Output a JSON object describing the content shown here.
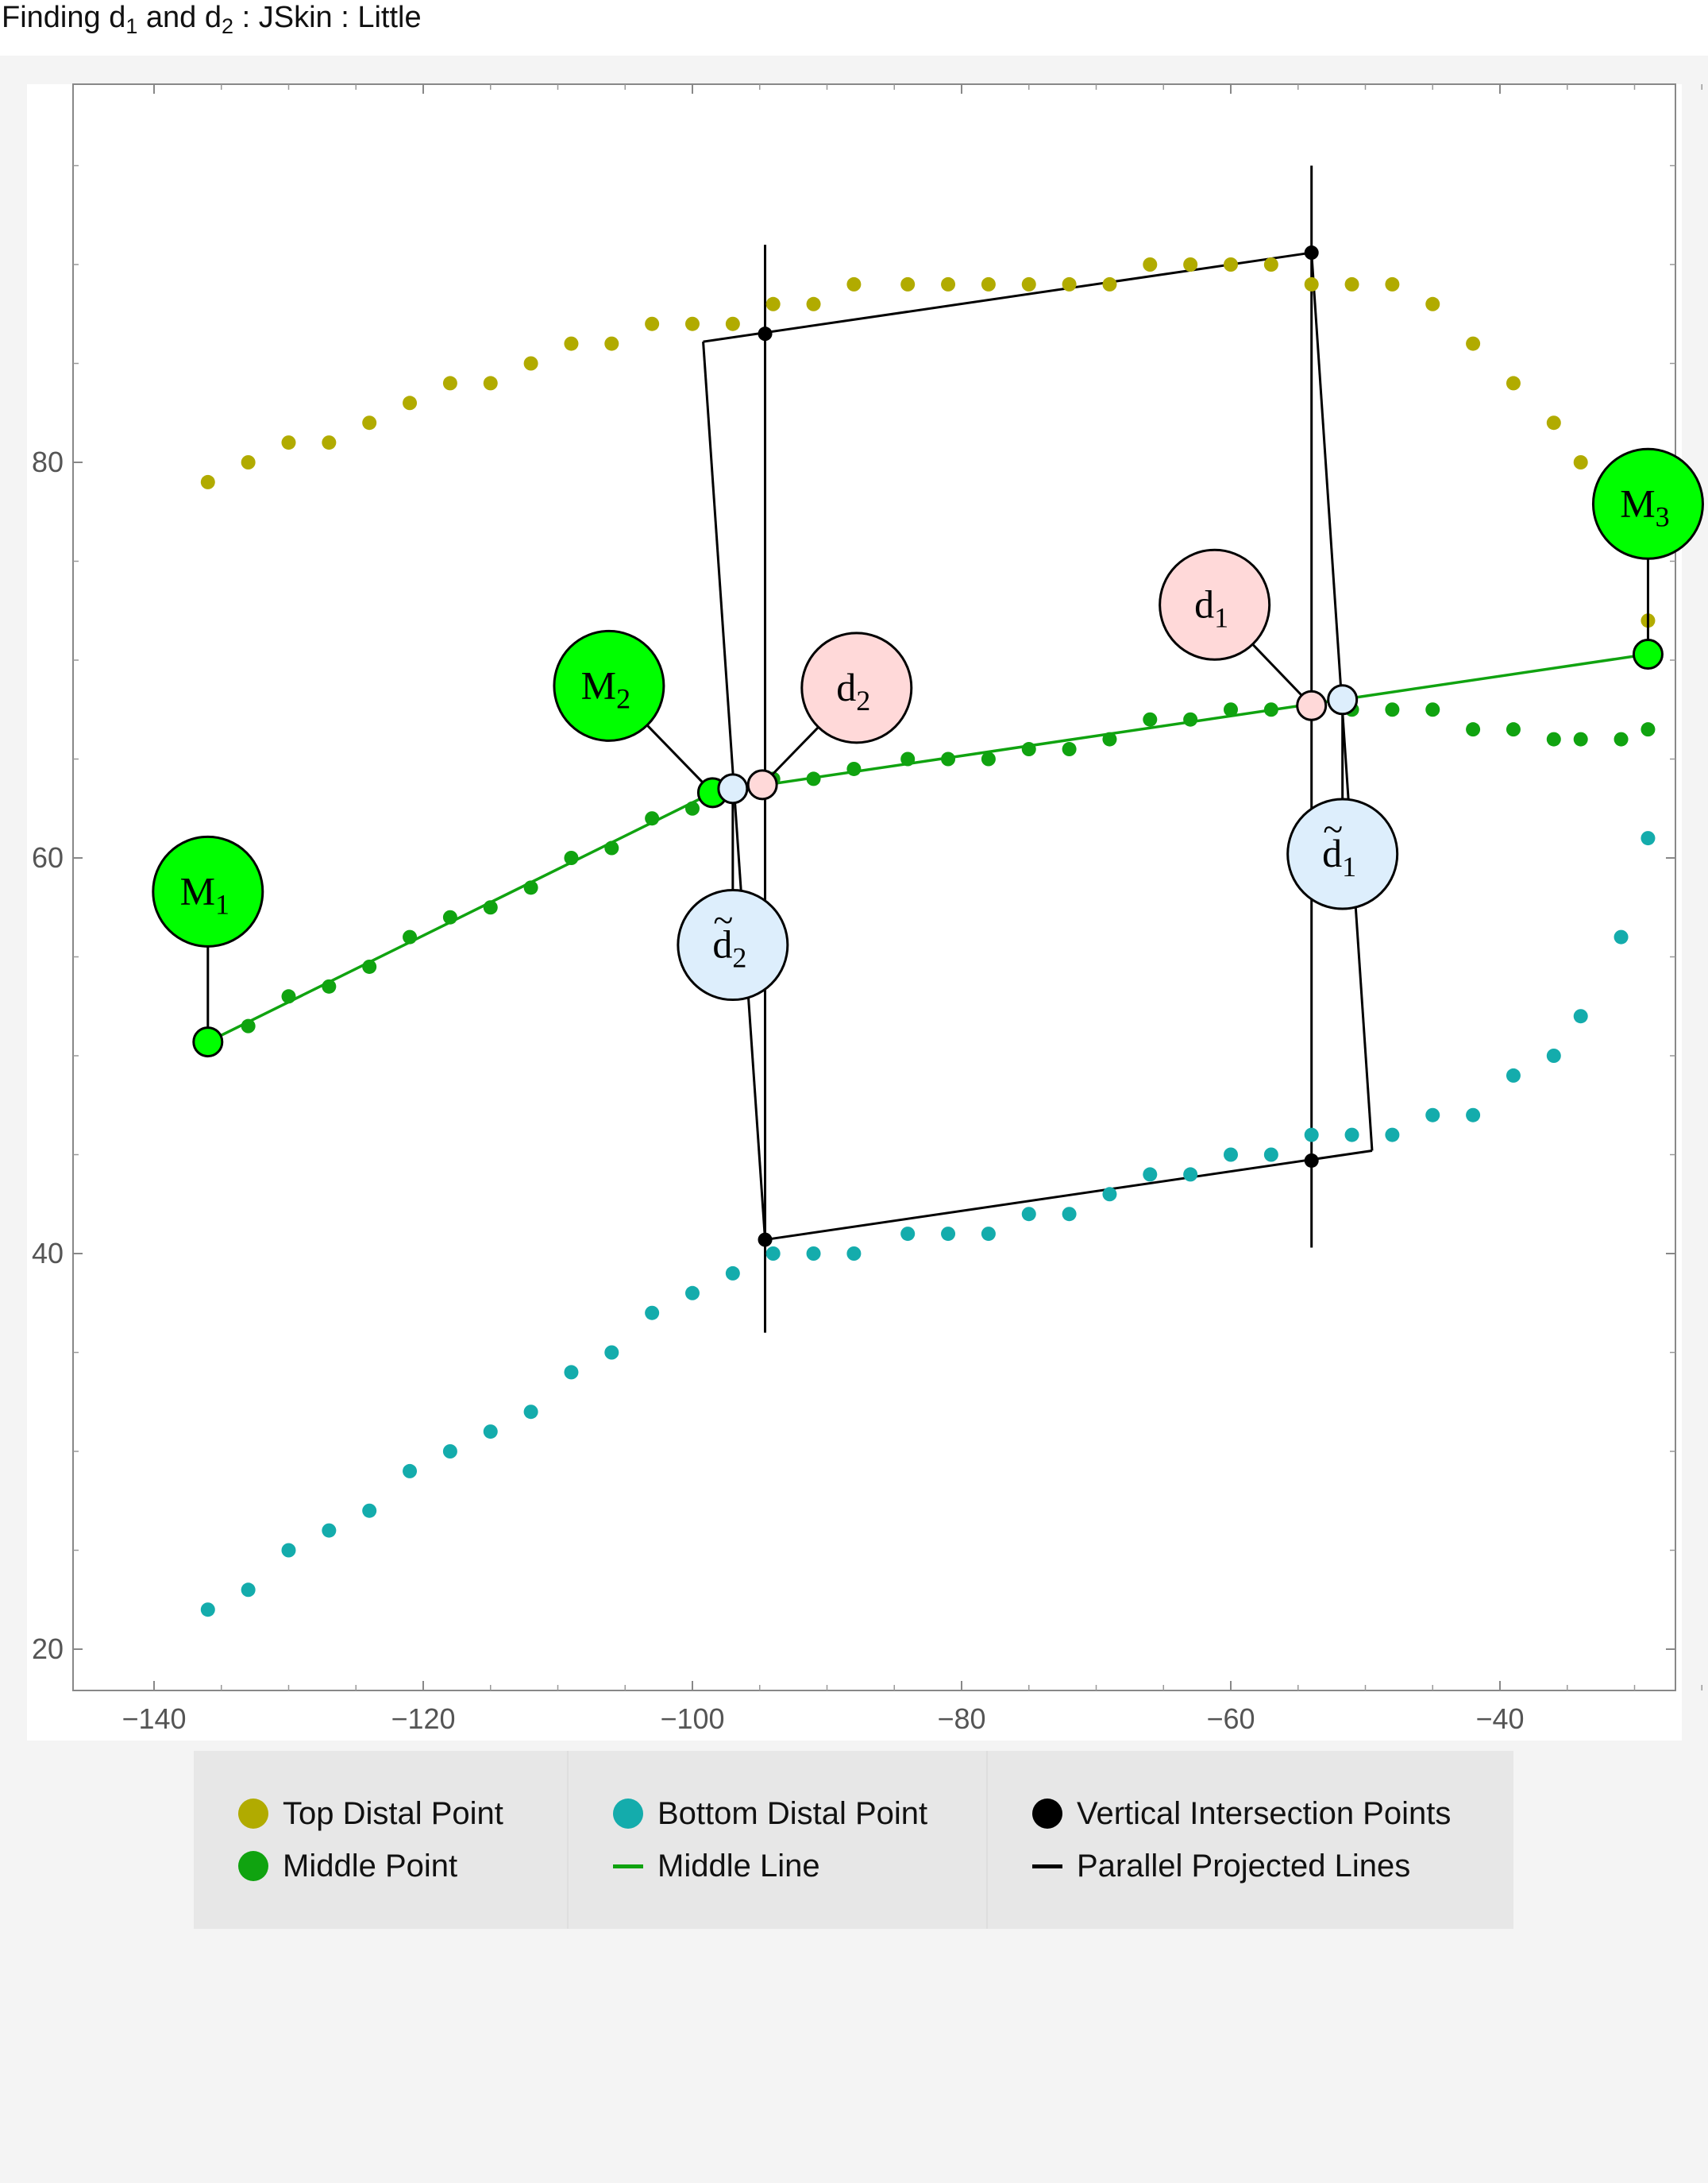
{
  "title": {
    "prefix": "Finding d",
    "sub1": "1",
    "mid": " and d",
    "sub2": "2",
    "suffix": " : JSkin : Little"
  },
  "chart_data": {
    "type": "scatter",
    "xlim": [
      -145,
      -25
    ],
    "ylim": [
      18,
      97
    ],
    "x_ticks": [
      -140,
      -120,
      -100,
      -80,
      -60,
      -40
    ],
    "y_ticks": [
      20,
      40,
      60,
      80
    ],
    "x_tick_labels": [
      "−140",
      "−120",
      "−100",
      "−80",
      "−60",
      "−40"
    ],
    "y_tick_labels": [
      "20",
      "40",
      "60",
      "80"
    ],
    "grid": false,
    "colors": {
      "top": "#b1ab00",
      "middle": "#10a310",
      "bottom": "#14acac",
      "black": "#000000",
      "marker_green": "#00ff00",
      "marker_pink": "#ffd9d9",
      "marker_blue": "#ddeefc"
    },
    "series": [
      {
        "name": "Top Distal Point",
        "kind": "points",
        "color": "#b1ab00",
        "x": [
          -136,
          -133,
          -130,
          -127,
          -124,
          -121,
          -118,
          -115,
          -112,
          -109,
          -106,
          -103,
          -100,
          -97,
          -94,
          -91,
          -88,
          -84,
          -81,
          -78,
          -75,
          -72,
          -69,
          -66,
          -63,
          -60,
          -57,
          -54,
          -51,
          -48,
          -45,
          -42,
          -39,
          -36,
          -34,
          -31,
          -29
        ],
        "y": [
          79,
          80,
          81,
          81,
          82,
          83,
          84,
          84,
          85,
          86,
          86,
          87,
          87,
          87,
          88,
          88,
          89,
          89,
          89,
          89,
          89,
          89,
          89,
          90,
          90,
          90,
          90,
          89,
          89,
          89,
          88,
          86,
          84,
          82,
          80,
          78,
          72
        ]
      },
      {
        "name": "Middle Point",
        "kind": "points",
        "color": "#10a310",
        "x": [
          -133,
          -130,
          -127,
          -124,
          -121,
          -118,
          -115,
          -112,
          -109,
          -106,
          -103,
          -100,
          -97,
          -94,
          -91,
          -88,
          -84,
          -81,
          -78,
          -75,
          -72,
          -69,
          -66,
          -63,
          -60,
          -57,
          -54,
          -51,
          -48,
          -45,
          -42,
          -39,
          -36,
          -34,
          -31,
          -29
        ],
        "y": [
          51.5,
          53,
          53.5,
          54.5,
          56,
          57,
          57.5,
          58.5,
          60,
          60.5,
          62,
          62.5,
          63.5,
          64,
          64,
          64.5,
          65,
          65,
          65,
          65.5,
          65.5,
          66,
          67,
          67,
          67.5,
          67.5,
          67.5,
          67.5,
          67.5,
          67.5,
          66.5,
          66.5,
          66,
          66,
          66,
          66.5
        ]
      },
      {
        "name": "Bottom Distal Point",
        "kind": "points",
        "color": "#14acac",
        "x": [
          -136,
          -133,
          -130,
          -127,
          -124,
          -121,
          -118,
          -115,
          -112,
          -109,
          -106,
          -103,
          -100,
          -97,
          -94,
          -91,
          -88,
          -84,
          -81,
          -78,
          -75,
          -72,
          -69,
          -66,
          -63,
          -60,
          -57,
          -54,
          -51,
          -48,
          -45,
          -42,
          -39,
          -36,
          -34,
          -31,
          -29
        ],
        "y": [
          22,
          23,
          25,
          26,
          27,
          29,
          30,
          31,
          32,
          34,
          35,
          37,
          38,
          39,
          40,
          40,
          40,
          41,
          41,
          41,
          42,
          42,
          43,
          44,
          44,
          45,
          45,
          46,
          46,
          46,
          47,
          47,
          49,
          50,
          52,
          56,
          61
        ]
      },
      {
        "name": "Middle Line",
        "kind": "line",
        "color": "#10a310",
        "x": [
          -136,
          -98.5,
          -29
        ],
        "y": [
          50.7,
          63.3,
          70.3
        ]
      },
      {
        "name": "Vertical Intersection Points",
        "kind": "points",
        "color": "#000000",
        "x": [
          -94.6,
          -54,
          -94.6,
          -54
        ],
        "y": [
          86.5,
          90.6,
          40.7,
          44.7
        ]
      },
      {
        "name": "Parallel Projected Lines",
        "kind": "lines",
        "color": "#000000",
        "segments": [
          {
            "x": [
              -94.6,
              -94.6
            ],
            "y": [
              36,
              91
            ]
          },
          {
            "x": [
              -54,
              -54
            ],
            "y": [
              40.3,
              95
            ]
          },
          {
            "x": [
              -99.2,
              -54
            ],
            "y": [
              86.1,
              90.6
            ]
          },
          {
            "x": [
              -99.2,
              -94.6
            ],
            "y": [
              86.1,
              40.7
            ]
          },
          {
            "x": [
              -94.6,
              -49.5
            ],
            "y": [
              40.7,
              45.2
            ]
          },
          {
            "x": [
              -54,
              -49.5
            ],
            "y": [
              90.6,
              45.2
            ]
          }
        ]
      }
    ],
    "annotations": [
      {
        "base": "M",
        "sub": "1",
        "tilde": false,
        "fill": "#00ff00",
        "point": [
          -136,
          50.7
        ],
        "label": [
          -136,
          58.3
        ],
        "point_r": 12
      },
      {
        "base": "M",
        "sub": "2",
        "tilde": false,
        "fill": "#00ff00",
        "point": [
          -98.5,
          63.3
        ],
        "label": [
          -106.2,
          68.7
        ],
        "point_r": 12
      },
      {
        "base": "M",
        "sub": "3",
        "tilde": false,
        "fill": "#00ff00",
        "point": [
          -29,
          70.3
        ],
        "label": [
          -29,
          77.9
        ],
        "point_r": 12
      },
      {
        "base": "d",
        "sub": "2",
        "tilde": false,
        "fill": "#ffd9d9",
        "point": [
          -94.8,
          63.7
        ],
        "label": [
          -87.8,
          68.6
        ],
        "point_r": 12
      },
      {
        "base": "d",
        "sub": "1",
        "tilde": false,
        "fill": "#ffd9d9",
        "point": [
          -54,
          67.7
        ],
        "label": [
          -61.2,
          72.8
        ],
        "point_r": 12
      },
      {
        "base": "d",
        "sub": "2",
        "tilde": true,
        "fill": "#ddeefc",
        "point": [
          -97,
          63.5
        ],
        "label": [
          -97,
          55.6
        ],
        "point_r": 12
      },
      {
        "base": "d",
        "sub": "1",
        "tilde": true,
        "fill": "#ddeefc",
        "point": [
          -51.7,
          68
        ],
        "label": [
          -51.7,
          60.2
        ],
        "point_r": 12
      }
    ],
    "legend": {
      "placement": "bottom",
      "columns": [
        [
          {
            "label": "Top Distal Point",
            "type": "dot",
            "color": "#b1ab00"
          },
          {
            "label": "Middle Point",
            "type": "dot",
            "color": "#10a310"
          }
        ],
        [
          {
            "label": "Bottom Distal Point",
            "type": "dot",
            "color": "#14acac"
          },
          {
            "label": "Middle Line",
            "type": "bar",
            "color": "#10a310"
          }
        ],
        [
          {
            "label": "Vertical Intersection Points",
            "type": "dot",
            "color": "#000000"
          },
          {
            "label": "Parallel Projected Lines",
            "type": "bar",
            "color": "#000000"
          }
        ]
      ]
    }
  }
}
